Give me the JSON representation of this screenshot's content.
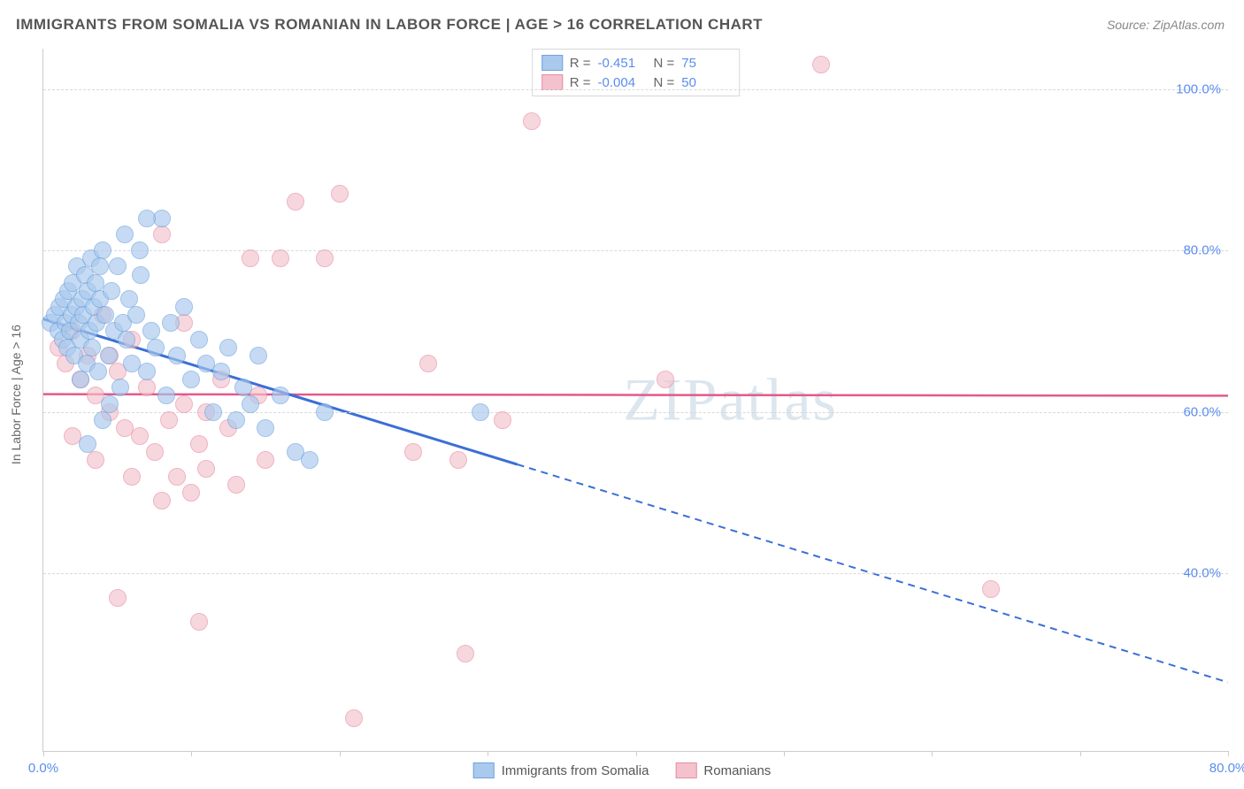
{
  "title": "IMMIGRANTS FROM SOMALIA VS ROMANIAN IN LABOR FORCE | AGE > 16 CORRELATION CHART",
  "source": "Source: ZipAtlas.com",
  "ylabel": "In Labor Force | Age > 16",
  "watermark_a": "ZIP",
  "watermark_b": "atlas",
  "chart": {
    "type": "scatter",
    "xlim": [
      0,
      80
    ],
    "ylim": [
      18,
      105
    ],
    "background_color": "#ffffff",
    "grid_color": "#d8d8d8",
    "axis_color": "#cccccc",
    "tick_label_color": "#5b8def",
    "tick_fontsize": 15,
    "yticks": [
      40,
      60,
      80,
      100
    ],
    "ytick_labels": [
      "40.0%",
      "60.0%",
      "80.0%",
      "100.0%"
    ],
    "xticks": [
      0,
      10,
      20,
      30,
      40,
      50,
      60,
      70,
      80
    ],
    "xtick_labels_shown": {
      "0": "0.0%",
      "80": "80.0%"
    },
    "point_radius": 9,
    "point_opacity": 0.65,
    "series": [
      {
        "name": "Immigrants from Somalia",
        "fill_color": "#a9c9ed",
        "stroke_color": "#6fa3dd",
        "trend_color": "#3b6fd6",
        "trend_width_solid": 3,
        "trend_width_dash": 2,
        "R": "-0.451",
        "N": "75",
        "trend": {
          "x1": 0,
          "y1": 71.5,
          "x2_solid": 32,
          "y2_solid": 53.5,
          "x2_dash": 80,
          "y2_dash": 26.5
        },
        "points": [
          [
            0.5,
            71
          ],
          [
            0.8,
            72
          ],
          [
            1.0,
            70
          ],
          [
            1.1,
            73
          ],
          [
            1.3,
            69
          ],
          [
            1.4,
            74
          ],
          [
            1.5,
            71
          ],
          [
            1.6,
            68
          ],
          [
            1.7,
            75
          ],
          [
            1.8,
            70
          ],
          [
            1.9,
            72
          ],
          [
            2.0,
            76
          ],
          [
            2.1,
            67
          ],
          [
            2.2,
            73
          ],
          [
            2.3,
            78
          ],
          [
            2.4,
            71
          ],
          [
            2.5,
            69
          ],
          [
            2.6,
            74
          ],
          [
            2.7,
            72
          ],
          [
            2.8,
            77
          ],
          [
            2.9,
            66
          ],
          [
            3.0,
            75
          ],
          [
            3.1,
            70
          ],
          [
            3.2,
            79
          ],
          [
            3.3,
            68
          ],
          [
            3.4,
            73
          ],
          [
            3.5,
            76
          ],
          [
            3.6,
            71
          ],
          [
            3.7,
            65
          ],
          [
            3.8,
            74
          ],
          [
            4.0,
            80
          ],
          [
            4.2,
            72
          ],
          [
            4.4,
            67
          ],
          [
            4.6,
            75
          ],
          [
            4.8,
            70
          ],
          [
            5.0,
            78
          ],
          [
            5.2,
            63
          ],
          [
            5.4,
            71
          ],
          [
            5.6,
            69
          ],
          [
            5.8,
            74
          ],
          [
            6.0,
            66
          ],
          [
            6.3,
            72
          ],
          [
            6.6,
            77
          ],
          [
            7.0,
            65
          ],
          [
            7.3,
            70
          ],
          [
            7.6,
            68
          ],
          [
            8.0,
            84
          ],
          [
            8.3,
            62
          ],
          [
            8.6,
            71
          ],
          [
            9.0,
            67
          ],
          [
            9.5,
            73
          ],
          [
            10.0,
            64
          ],
          [
            10.5,
            69
          ],
          [
            11.0,
            66
          ],
          [
            11.5,
            60
          ],
          [
            12.0,
            65
          ],
          [
            12.5,
            68
          ],
          [
            13.0,
            59
          ],
          [
            13.5,
            63
          ],
          [
            14.0,
            61
          ],
          [
            14.5,
            67
          ],
          [
            15.0,
            58
          ],
          [
            16.0,
            62
          ],
          [
            17.0,
            55
          ],
          [
            18.0,
            54
          ],
          [
            19.0,
            60
          ],
          [
            3.0,
            56
          ],
          [
            4.0,
            59
          ],
          [
            29.5,
            60
          ],
          [
            5.5,
            82
          ],
          [
            7.0,
            84
          ],
          [
            2.5,
            64
          ],
          [
            6.5,
            80
          ],
          [
            4.5,
            61
          ],
          [
            3.8,
            78
          ]
        ]
      },
      {
        "name": "Romanians",
        "fill_color": "#f4c2cd",
        "stroke_color": "#e98ca3",
        "trend_color": "#e35a8a",
        "trend_width_solid": 2.5,
        "R": "-0.004",
        "N": "50",
        "trend": {
          "x1": 0,
          "y1": 62.2,
          "x2": 80,
          "y2": 62.0
        },
        "points": [
          [
            1.0,
            68
          ],
          [
            1.5,
            66
          ],
          [
            2.0,
            70
          ],
          [
            2.5,
            64
          ],
          [
            3.0,
            67
          ],
          [
            3.5,
            62
          ],
          [
            4.0,
            72
          ],
          [
            4.5,
            60
          ],
          [
            5.0,
            65
          ],
          [
            5.5,
            58
          ],
          [
            6.0,
            69
          ],
          [
            6.5,
            57
          ],
          [
            7.0,
            63
          ],
          [
            7.5,
            55
          ],
          [
            8.0,
            82
          ],
          [
            8.5,
            59
          ],
          [
            9.0,
            52
          ],
          [
            9.5,
            61
          ],
          [
            10.0,
            50
          ],
          [
            10.5,
            56
          ],
          [
            11.0,
            53
          ],
          [
            12.0,
            64
          ],
          [
            13.0,
            51
          ],
          [
            14.0,
            79
          ],
          [
            15.0,
            54
          ],
          [
            16.0,
            79
          ],
          [
            17.0,
            86
          ],
          [
            19.0,
            79
          ],
          [
            20.0,
            87
          ],
          [
            21.0,
            22
          ],
          [
            25.0,
            55
          ],
          [
            26.0,
            66
          ],
          [
            28.0,
            54
          ],
          [
            31.0,
            59
          ],
          [
            28.5,
            30
          ],
          [
            33.0,
            96
          ],
          [
            42.0,
            64
          ],
          [
            52.5,
            103
          ],
          [
            64.0,
            38
          ],
          [
            5.0,
            37
          ],
          [
            10.5,
            34
          ],
          [
            2.0,
            57
          ],
          [
            3.5,
            54
          ],
          [
            4.5,
            67
          ],
          [
            6.0,
            52
          ],
          [
            8.0,
            49
          ],
          [
            9.5,
            71
          ],
          [
            11.0,
            60
          ],
          [
            12.5,
            58
          ],
          [
            14.5,
            62
          ]
        ]
      }
    ]
  },
  "legend_top": {
    "r_label": "R =",
    "n_label": "N ="
  },
  "legend_bottom": {
    "items": [
      "Immigrants from Somalia",
      "Romanians"
    ]
  }
}
